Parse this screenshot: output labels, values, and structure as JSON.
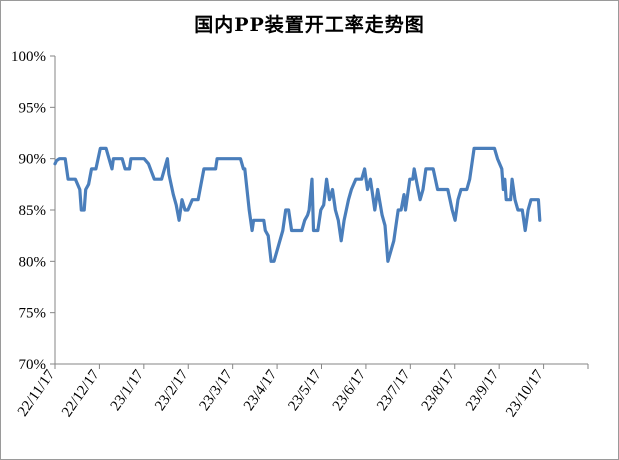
{
  "chart_data": {
    "type": "line",
    "title": "国内PP装置开工率走势图",
    "xlabel": "",
    "ylabel": "",
    "ylim": [
      70,
      100
    ],
    "yticks": [
      "70%",
      "75%",
      "80%",
      "85%",
      "90%",
      "95%",
      "100%"
    ],
    "x_tick_labels": [
      "22/11/17",
      "22/12/17",
      "23/1/17",
      "23/2/17",
      "23/3/17",
      "23/4/17",
      "23/5/17",
      "23/6/17",
      "23/7/17",
      "23/8/17",
      "23/9/17",
      "23/10/17"
    ],
    "x_range": [
      "2022-11-17",
      "2023-11-17"
    ],
    "grid": false,
    "legend": "none",
    "line_color": "#4a7ebb",
    "series": [
      {
        "name": "",
        "points": [
          [
            "2022-11-17",
            89.5
          ],
          [
            "2022-11-18",
            89.8
          ],
          [
            "2022-11-20",
            90.0
          ],
          [
            "2022-11-24",
            90.0
          ],
          [
            "2022-11-26",
            88.0
          ],
          [
            "2022-12-01",
            88.0
          ],
          [
            "2022-12-04",
            87.0
          ],
          [
            "2022-12-05",
            85.0
          ],
          [
            "2022-12-07",
            85.0
          ],
          [
            "2022-12-08",
            87.0
          ],
          [
            "2022-12-10",
            87.5
          ],
          [
            "2022-12-12",
            89.0
          ],
          [
            "2022-12-15",
            89.0
          ],
          [
            "2022-12-18",
            91.0
          ],
          [
            "2022-12-22",
            91.0
          ],
          [
            "2022-12-25",
            89.5
          ],
          [
            "2022-12-26",
            89.0
          ],
          [
            "2022-12-27",
            90.0
          ],
          [
            "2023-01-02",
            90.0
          ],
          [
            "2023-01-04",
            89.0
          ],
          [
            "2023-01-07",
            89.0
          ],
          [
            "2023-01-08",
            90.0
          ],
          [
            "2023-01-17",
            90.0
          ],
          [
            "2023-01-20",
            89.5
          ],
          [
            "2023-01-24",
            88.0
          ],
          [
            "2023-01-29",
            88.0
          ],
          [
            "2023-02-02",
            90.0
          ],
          [
            "2023-02-03",
            88.5
          ],
          [
            "2023-02-06",
            86.5
          ],
          [
            "2023-02-08",
            85.5
          ],
          [
            "2023-02-10",
            84.0
          ],
          [
            "2023-02-12",
            86.0
          ],
          [
            "2023-02-14",
            85.0
          ],
          [
            "2023-02-16",
            85.0
          ],
          [
            "2023-02-19",
            86.0
          ],
          [
            "2023-02-23",
            86.0
          ],
          [
            "2023-02-27",
            89.0
          ],
          [
            "2023-03-07",
            89.0
          ],
          [
            "2023-03-08",
            90.0
          ],
          [
            "2023-03-24",
            90.0
          ],
          [
            "2023-03-26",
            89.0
          ],
          [
            "2023-03-27",
            89.0
          ],
          [
            "2023-03-30",
            85.0
          ],
          [
            "2023-04-01",
            83.0
          ],
          [
            "2023-04-02",
            84.0
          ],
          [
            "2023-04-09",
            84.0
          ],
          [
            "2023-04-10",
            83.0
          ],
          [
            "2023-04-12",
            82.5
          ],
          [
            "2023-04-14",
            80.0
          ],
          [
            "2023-04-16",
            80.0
          ],
          [
            "2023-04-22",
            83.0
          ],
          [
            "2023-04-24",
            85.0
          ],
          [
            "2023-04-26",
            85.0
          ],
          [
            "2023-04-28",
            83.0
          ],
          [
            "2023-05-05",
            83.0
          ],
          [
            "2023-05-07",
            84.0
          ],
          [
            "2023-05-09",
            84.5
          ],
          [
            "2023-05-10",
            85.0
          ],
          [
            "2023-05-12",
            88.0
          ],
          [
            "2023-05-13",
            83.0
          ],
          [
            "2023-05-16",
            83.0
          ],
          [
            "2023-05-18",
            85.0
          ],
          [
            "2023-05-20",
            85.5
          ],
          [
            "2023-05-22",
            88.0
          ],
          [
            "2023-05-24",
            86.0
          ],
          [
            "2023-05-26",
            87.0
          ],
          [
            "2023-05-28",
            85.0
          ],
          [
            "2023-05-30",
            84.0
          ],
          [
            "2023-06-01",
            82.0
          ],
          [
            "2023-06-03",
            84.0
          ],
          [
            "2023-06-06",
            86.0
          ],
          [
            "2023-06-08",
            87.0
          ],
          [
            "2023-06-11",
            88.0
          ],
          [
            "2023-06-15",
            88.0
          ],
          [
            "2023-06-17",
            89.0
          ],
          [
            "2023-06-19",
            87.0
          ],
          [
            "2023-06-21",
            88.0
          ],
          [
            "2023-06-24",
            85.0
          ],
          [
            "2023-06-26",
            87.0
          ],
          [
            "2023-06-29",
            84.5
          ],
          [
            "2023-07-01",
            83.5
          ],
          [
            "2023-07-03",
            80.0
          ],
          [
            "2023-07-07",
            82.0
          ],
          [
            "2023-07-09",
            84.0
          ],
          [
            "2023-07-10",
            85.0
          ],
          [
            "2023-07-12",
            85.0
          ],
          [
            "2023-07-14",
            86.5
          ],
          [
            "2023-07-15",
            85.0
          ],
          [
            "2023-07-18",
            88.0
          ],
          [
            "2023-07-20",
            88.0
          ],
          [
            "2023-07-21",
            89.0
          ],
          [
            "2023-07-23",
            87.5
          ],
          [
            "2023-07-25",
            86.0
          ],
          [
            "2023-07-27",
            87.0
          ],
          [
            "2023-07-29",
            89.0
          ],
          [
            "2023-08-03",
            89.0
          ],
          [
            "2023-08-06",
            87.0
          ],
          [
            "2023-08-13",
            87.0
          ],
          [
            "2023-08-16",
            85.0
          ],
          [
            "2023-08-18",
            84.0
          ],
          [
            "2023-08-20",
            86.0
          ],
          [
            "2023-08-22",
            87.0
          ],
          [
            "2023-08-26",
            87.0
          ],
          [
            "2023-08-28",
            88.0
          ],
          [
            "2023-08-31",
            91.0
          ],
          [
            "2023-09-14",
            91.0
          ],
          [
            "2023-09-16",
            90.0
          ],
          [
            "2023-09-19",
            89.0
          ],
          [
            "2023-09-20",
            87.0
          ],
          [
            "2023-09-21",
            88.0
          ],
          [
            "2023-09-22",
            86.0
          ],
          [
            "2023-09-25",
            86.0
          ],
          [
            "2023-09-26",
            88.0
          ],
          [
            "2023-09-28",
            86.0
          ],
          [
            "2023-09-30",
            85.0
          ],
          [
            "2023-10-03",
            85.0
          ],
          [
            "2023-10-05",
            83.0
          ],
          [
            "2023-10-07",
            85.0
          ],
          [
            "2023-10-09",
            86.0
          ],
          [
            "2023-10-11",
            86.0
          ],
          [
            "2023-10-14",
            86.0
          ],
          [
            "2023-10-15",
            84.0
          ]
        ]
      }
    ]
  }
}
